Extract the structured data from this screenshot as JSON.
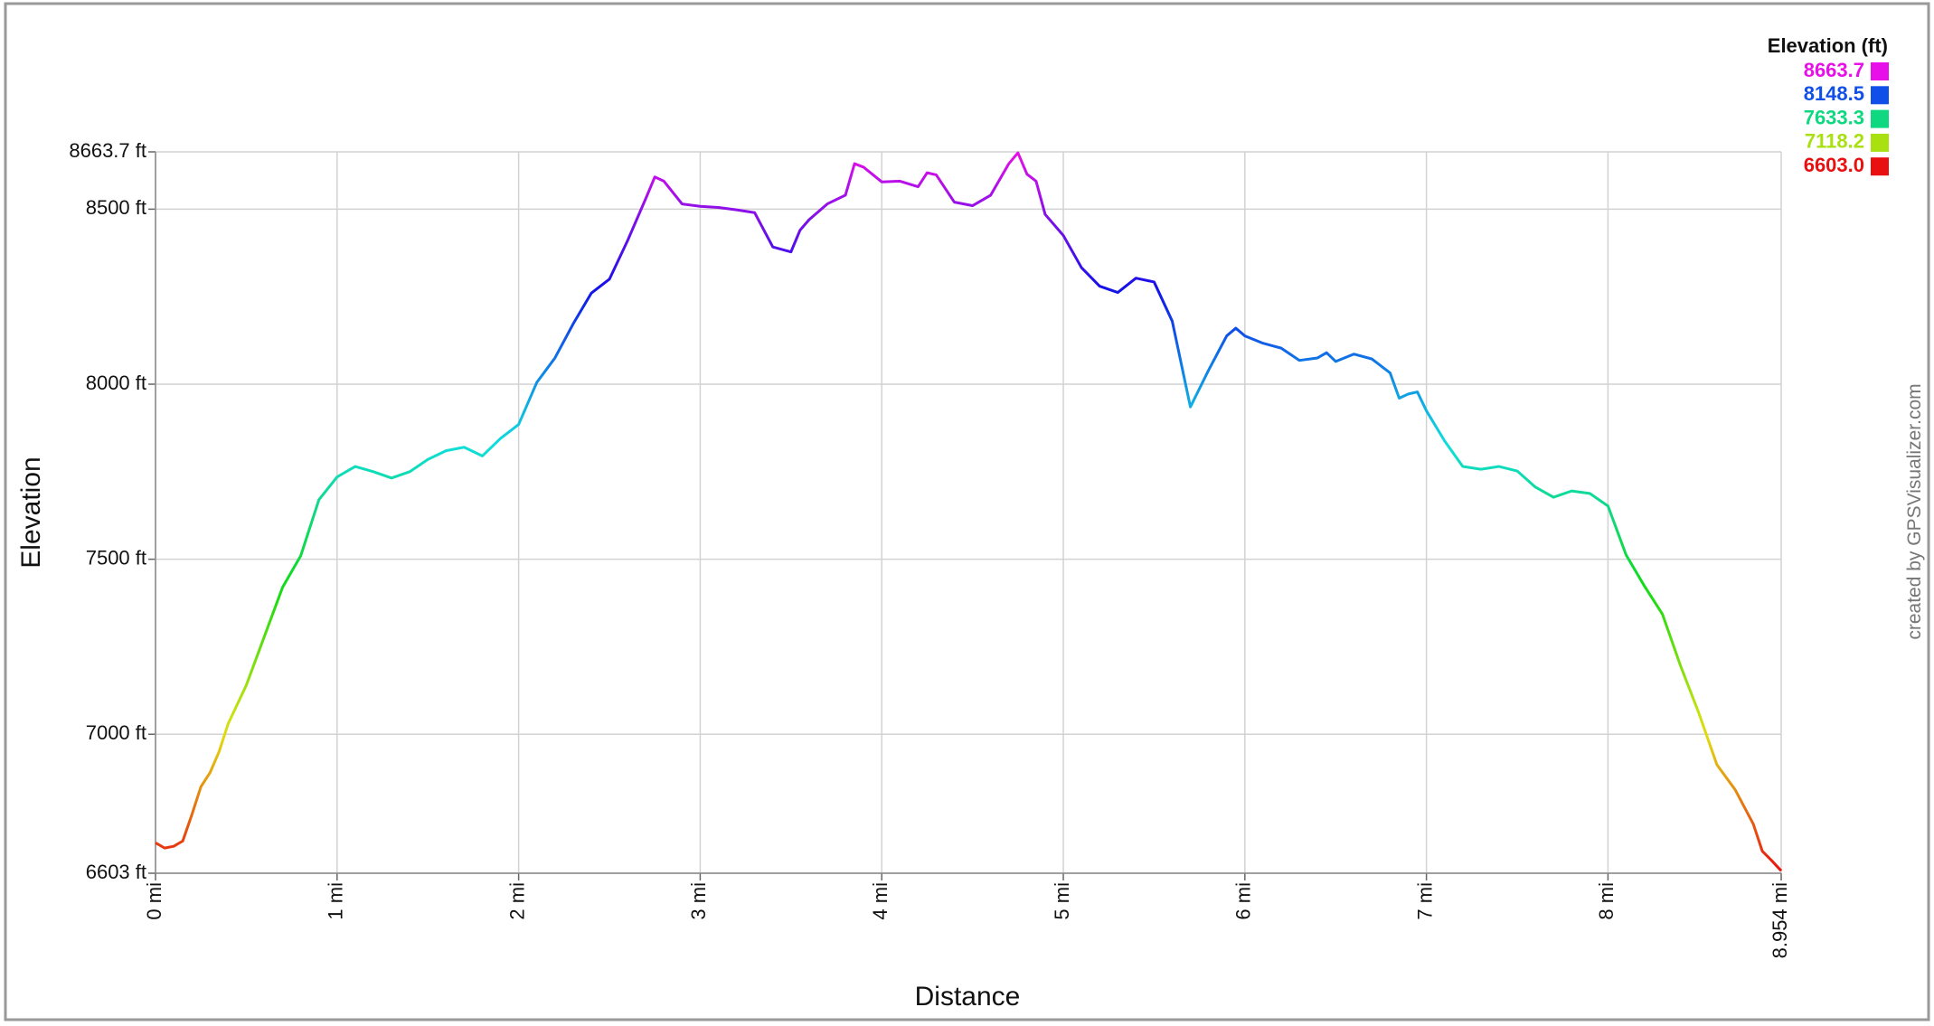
{
  "chart_data": {
    "type": "line",
    "x_label": "Distance",
    "y_label": "Elevation",
    "credit": "created by GPSVisualizer.com",
    "xlim": [
      0,
      8.954
    ],
    "ylim": [
      6603,
      8663.7
    ],
    "xticks": [
      {
        "value": 0,
        "label": "0 mi"
      },
      {
        "value": 1,
        "label": "1 mi"
      },
      {
        "value": 2,
        "label": "2 mi"
      },
      {
        "value": 3,
        "label": "3 mi"
      },
      {
        "value": 4,
        "label": "4 mi"
      },
      {
        "value": 5,
        "label": "5 mi"
      },
      {
        "value": 6,
        "label": "6 mi"
      },
      {
        "value": 7,
        "label": "7 mi"
      },
      {
        "value": 8,
        "label": "8 mi"
      },
      {
        "value": 8.954,
        "label": "8.954 mi"
      }
    ],
    "yticks": [
      {
        "value": 8663.7,
        "label": "8663.7 ft"
      },
      {
        "value": 8500,
        "label": "8500 ft"
      },
      {
        "value": 8000,
        "label": "8000 ft"
      },
      {
        "value": 7500,
        "label": "7500 ft"
      },
      {
        "value": 7000,
        "label": "7000 ft"
      },
      {
        "value": 6603,
        "label": "6603 ft"
      }
    ],
    "grid": true,
    "legend": {
      "title": "Elevation (ft)",
      "position": "upper right",
      "entries": [
        {
          "value": 8663.7,
          "label": "8663.7",
          "color": "#e810e8"
        },
        {
          "value": 8148.5,
          "label": "8148.5",
          "color": "#1050e8"
        },
        {
          "value": 7633.3,
          "label": "7633.3",
          "color": "#10d880"
        },
        {
          "value": 7118.2,
          "label": "7118.2",
          "color": "#a8e010"
        },
        {
          "value": 6603,
          "label": "6603.0",
          "color": "#e81010"
        }
      ]
    },
    "x": [
      0,
      0.05,
      0.1,
      0.15,
      0.2,
      0.25,
      0.3,
      0.35,
      0.4,
      0.5,
      0.6,
      0.7,
      0.8,
      0.9,
      1.0,
      1.1,
      1.2,
      1.3,
      1.4,
      1.5,
      1.6,
      1.7,
      1.8,
      1.9,
      2.0,
      2.1,
      2.2,
      2.3,
      2.4,
      2.5,
      2.6,
      2.7,
      2.75,
      2.8,
      2.9,
      3.0,
      3.1,
      3.2,
      3.3,
      3.4,
      3.5,
      3.55,
      3.6,
      3.7,
      3.8,
      3.85,
      3.9,
      4.0,
      4.1,
      4.2,
      4.25,
      4.3,
      4.4,
      4.5,
      4.6,
      4.7,
      4.75,
      4.8,
      4.85,
      4.9,
      5.0,
      5.1,
      5.2,
      5.3,
      5.4,
      5.5,
      5.6,
      5.7,
      5.8,
      5.9,
      5.95,
      6.0,
      6.1,
      6.2,
      6.3,
      6.4,
      6.45,
      6.5,
      6.6,
      6.7,
      6.8,
      6.85,
      6.9,
      6.95,
      7.0,
      7.1,
      7.2,
      7.3,
      7.4,
      7.5,
      7.6,
      7.7,
      7.8,
      7.9,
      8.0,
      8.1,
      8.2,
      8.3,
      8.4,
      8.5,
      8.6,
      8.7,
      8.8,
      8.85,
      8.9,
      8.954
    ],
    "series": [
      {
        "name": "Elevation",
        "values": [
          6690,
          6675,
          6680,
          6695,
          6770,
          6850,
          6890,
          6950,
          7030,
          7140,
          7280,
          7420,
          7510,
          7670,
          7735,
          7765,
          7750,
          7732,
          7750,
          7785,
          7810,
          7820,
          7795,
          7845,
          7885,
          8005,
          8075,
          8172,
          8260,
          8300,
          8410,
          8530,
          8592,
          8580,
          8515,
          8508,
          8505,
          8498,
          8490,
          8392,
          8378,
          8440,
          8470,
          8515,
          8540,
          8630,
          8620,
          8578,
          8580,
          8564,
          8604,
          8598,
          8520,
          8510,
          8540,
          8630,
          8661,
          8600,
          8580,
          8485,
          8425,
          8333,
          8280,
          8262,
          8303,
          8292,
          8180,
          7935,
          8040,
          8138,
          8160,
          8138,
          8117,
          8103,
          8068,
          8075,
          8090,
          8065,
          8086,
          8072,
          8032,
          7960,
          7972,
          7978,
          7924,
          7838,
          7765,
          7757,
          7765,
          7752,
          7706,
          7677,
          7695,
          7688,
          7652,
          7512,
          7424,
          7343,
          7195,
          7061,
          6913,
          6842,
          6744,
          6666,
          6640,
          6610
        ]
      }
    ]
  }
}
